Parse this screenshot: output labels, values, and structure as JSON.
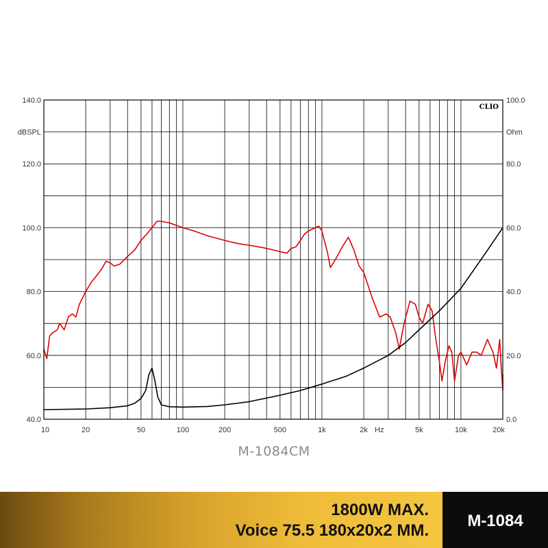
{
  "chart_data": {
    "type": "line",
    "watermark": "CLIO",
    "x_scale": "log",
    "xlim": [
      10,
      20000
    ],
    "x_ticks": [
      {
        "value": 10,
        "label": "10"
      },
      {
        "value": 20,
        "label": "20"
      },
      {
        "value": 50,
        "label": "50"
      },
      {
        "value": 100,
        "label": "100"
      },
      {
        "value": 200,
        "label": "200"
      },
      {
        "value": 500,
        "label": "500"
      },
      {
        "value": 1000,
        "label": "1k"
      },
      {
        "value": 2000,
        "label": "2k"
      },
      {
        "value": 5000,
        "label": "5k"
      },
      {
        "value": 10000,
        "label": "10k"
      },
      {
        "value": 20000,
        "label": "20k"
      }
    ],
    "x_unit": "Hz",
    "y_left": {
      "unit": "dBSPL",
      "ylim": [
        40,
        140
      ],
      "ticks": [
        "40.0",
        "60.0",
        "80.0",
        "100.0",
        "120.0",
        "140.0"
      ]
    },
    "y_right": {
      "unit": "Ohm",
      "ylim": [
        0,
        100
      ],
      "ticks": [
        "0.0",
        "20.0",
        "40.0",
        "60.0",
        "80.0",
        "100.0"
      ]
    },
    "grid": true,
    "series": [
      {
        "axis": "left",
        "color": "#e00000",
        "points": [
          [
            10,
            62
          ],
          [
            10.5,
            59
          ],
          [
            11,
            66
          ],
          [
            11.5,
            67
          ],
          [
            12.5,
            68
          ],
          [
            13,
            70
          ],
          [
            14,
            68
          ],
          [
            15,
            72
          ],
          [
            16,
            73
          ],
          [
            17,
            72
          ],
          [
            18,
            76
          ],
          [
            19,
            78
          ],
          [
            20,
            80
          ],
          [
            22,
            83
          ],
          [
            24,
            85
          ],
          [
            26,
            87
          ],
          [
            28,
            89.5
          ],
          [
            30,
            89
          ],
          [
            32,
            88
          ],
          [
            35,
            88.5
          ],
          [
            40,
            91
          ],
          [
            45,
            93
          ],
          [
            50,
            96
          ],
          [
            55,
            98
          ],
          [
            60,
            100
          ],
          [
            65,
            102
          ],
          [
            70,
            102
          ],
          [
            80,
            101.5
          ],
          [
            100,
            100
          ],
          [
            120,
            99
          ],
          [
            150,
            97.5
          ],
          [
            200,
            96
          ],
          [
            250,
            95
          ],
          [
            300,
            94.5
          ],
          [
            350,
            94
          ],
          [
            400,
            93.5
          ],
          [
            450,
            93
          ],
          [
            500,
            92.5
          ],
          [
            560,
            92
          ],
          [
            600,
            93.5
          ],
          [
            650,
            94
          ],
          [
            700,
            96
          ],
          [
            750,
            98
          ],
          [
            800,
            99
          ],
          [
            900,
            100
          ],
          [
            950,
            100.5
          ],
          [
            1000,
            99
          ],
          [
            1100,
            92
          ],
          [
            1150,
            87.5
          ],
          [
            1250,
            90
          ],
          [
            1400,
            94
          ],
          [
            1550,
            97
          ],
          [
            1700,
            93
          ],
          [
            1850,
            88
          ],
          [
            2000,
            86
          ],
          [
            2300,
            78
          ],
          [
            2600,
            72
          ],
          [
            2900,
            73
          ],
          [
            3100,
            72
          ],
          [
            3400,
            67
          ],
          [
            3600,
            62
          ],
          [
            3900,
            70
          ],
          [
            4300,
            77
          ],
          [
            4700,
            76
          ],
          [
            5000,
            72
          ],
          [
            5300,
            70
          ],
          [
            5800,
            76
          ],
          [
            6200,
            74
          ],
          [
            6600,
            65
          ],
          [
            7000,
            58
          ],
          [
            7300,
            52
          ],
          [
            7700,
            58
          ],
          [
            8200,
            63
          ],
          [
            8600,
            61
          ],
          [
            9000,
            52
          ],
          [
            9600,
            60
          ],
          [
            10000,
            61
          ],
          [
            10500,
            59
          ],
          [
            11000,
            57
          ],
          [
            12000,
            61
          ],
          [
            13000,
            61
          ],
          [
            14000,
            60
          ],
          [
            15500,
            65
          ],
          [
            17000,
            61
          ],
          [
            18000,
            56
          ],
          [
            19000,
            65
          ],
          [
            19500,
            56
          ],
          [
            20000,
            49
          ],
          [
            20700,
            54
          ]
        ]
      },
      {
        "axis": "right",
        "color": "#000000",
        "points": [
          [
            10,
            3
          ],
          [
            20,
            3.2
          ],
          [
            30,
            3.6
          ],
          [
            40,
            4.2
          ],
          [
            45,
            5
          ],
          [
            50,
            6.5
          ],
          [
            54,
            9
          ],
          [
            57,
            14
          ],
          [
            60,
            16
          ],
          [
            63,
            12
          ],
          [
            66,
            7
          ],
          [
            70,
            4.5
          ],
          [
            80,
            3.9
          ],
          [
            100,
            3.8
          ],
          [
            150,
            4
          ],
          [
            200,
            4.5
          ],
          [
            300,
            5.5
          ],
          [
            500,
            7.5
          ],
          [
            700,
            9
          ],
          [
            1000,
            11
          ],
          [
            1500,
            13.5
          ],
          [
            2000,
            16
          ],
          [
            3000,
            20
          ],
          [
            4000,
            24
          ],
          [
            5000,
            28
          ],
          [
            7000,
            34
          ],
          [
            10000,
            41
          ],
          [
            15000,
            52
          ],
          [
            20700,
            60
          ]
        ]
      }
    ]
  },
  "caption": "M-1084CM",
  "banner": {
    "spec_line_1": "1800W MAX.",
    "spec_line_2": "Voice 75.5 180x20x2 MM.",
    "model": "M-1084"
  },
  "colors": {
    "spl_curve": "#e00000",
    "impedance_curve": "#000000",
    "banner_dark": "#0c0c0c"
  }
}
